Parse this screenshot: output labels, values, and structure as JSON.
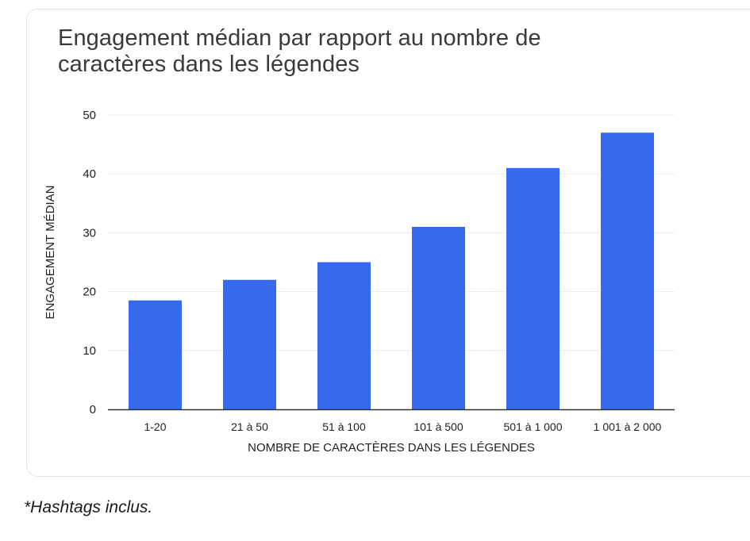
{
  "chart_data": {
    "type": "bar",
    "title": "Engagement médian par rapport au nombre de caractères dans les légendes",
    "title_lines": [
      "Engagement médian par rapport au nombre de",
      "caractères dans les légendes"
    ],
    "xlabel": "NOMBRE DE CARACTÈRES DANS LES LÉGENDES",
    "ylabel": "ENGAGEMENT MÉDIAN",
    "categories": [
      "1-20",
      "21 à 50",
      "51 à 100",
      "101 à 500",
      "501 à 1 000",
      "1 001 à 2 000"
    ],
    "values": [
      18.5,
      22,
      25,
      31,
      41,
      47
    ],
    "ylim": [
      0,
      50
    ],
    "yticks": [
      0,
      10,
      20,
      30,
      40,
      50
    ],
    "grid": true,
    "bar_color": "#3569ee"
  },
  "footnote": "*Hashtags inclus."
}
